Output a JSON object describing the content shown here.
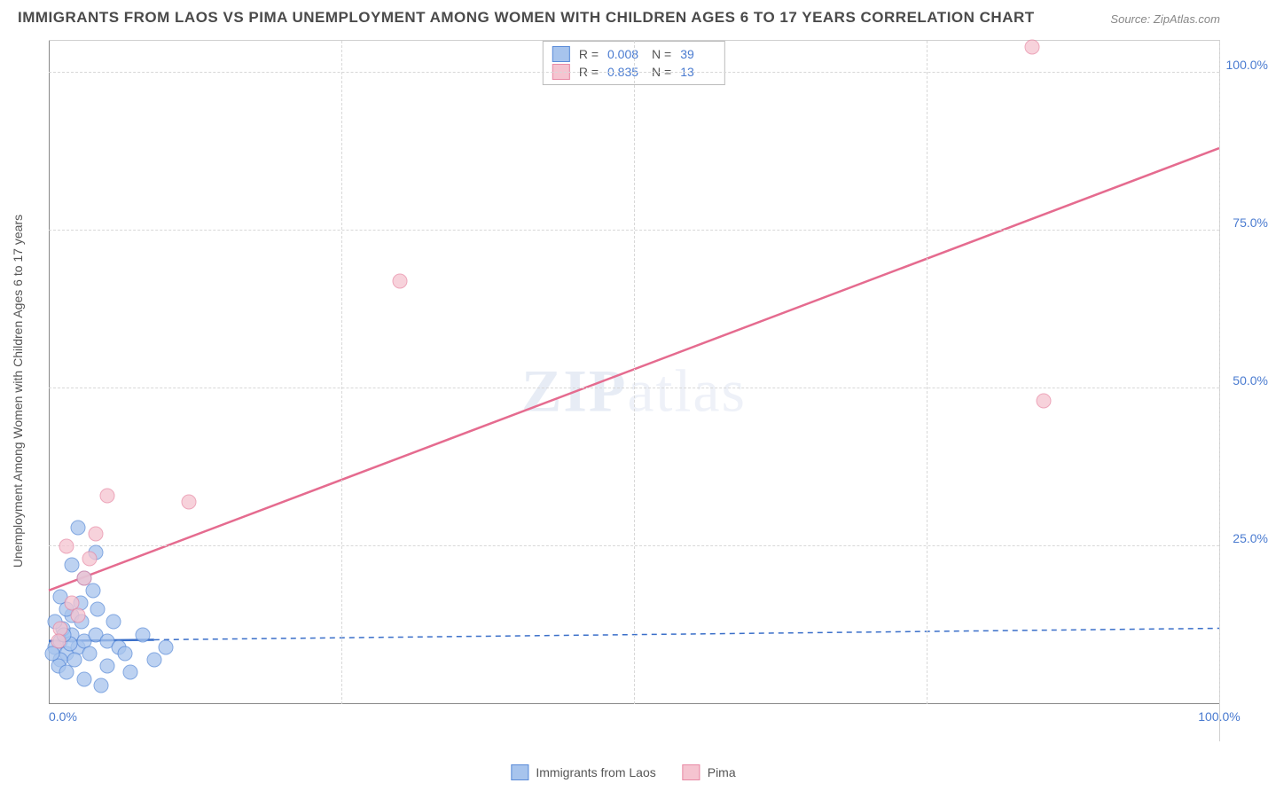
{
  "title": "IMMIGRANTS FROM LAOS VS PIMA UNEMPLOYMENT AMONG WOMEN WITH CHILDREN AGES 6 TO 17 YEARS CORRELATION CHART",
  "source_label": "Source:",
  "source_value": "ZipAtlas.com",
  "ylabel": "Unemployment Among Women with Children Ages 6 to 17 years",
  "watermark_bold": "ZIP",
  "watermark_thin": "atlas",
  "chart": {
    "type": "scatter",
    "xlim": [
      0,
      100
    ],
    "ylim": [
      0,
      105
    ],
    "xtick_labels": [
      "0.0%",
      "100.0%"
    ],
    "xtick_positions": [
      0,
      100
    ],
    "ytick_labels": [
      "25.0%",
      "50.0%",
      "75.0%",
      "100.0%"
    ],
    "ytick_positions": [
      25,
      50,
      75,
      100
    ],
    "grid_h_positions": [
      25,
      50,
      75,
      100
    ],
    "grid_v_positions": [
      25,
      50,
      75,
      100
    ],
    "background_color": "#ffffff",
    "grid_color": "#d8d8d8",
    "axis_color": "#888888",
    "tick_font_color": "#4a7bd0",
    "tick_fontsize": 14,
    "title_fontsize": 17,
    "marker_radius": 7.5,
    "marker_opacity": 0.75
  },
  "series": [
    {
      "name": "Immigrants from Laos",
      "fill_color": "#a7c4ed",
      "stroke_color": "#5a8bd8",
      "trend": {
        "y_at_x0": 10,
        "y_at_x100": 12,
        "solid_until_x": 9,
        "line_color": "#3a6fc9",
        "line_width": 2.5,
        "dash": "6,5"
      },
      "R": "0.008",
      "N": "39",
      "points": [
        [
          0.5,
          9
        ],
        [
          1,
          10
        ],
        [
          1.5,
          8
        ],
        [
          2,
          11
        ],
        [
          1,
          7
        ],
        [
          2.5,
          9
        ],
        [
          0.8,
          6
        ],
        [
          1.2,
          12
        ],
        [
          3,
          10
        ],
        [
          2,
          14
        ],
        [
          4,
          11
        ],
        [
          1.5,
          15
        ],
        [
          3.5,
          8
        ],
        [
          2.8,
          13
        ],
        [
          0.3,
          8
        ],
        [
          1.8,
          9.5
        ],
        [
          2.2,
          7
        ],
        [
          5,
          10
        ],
        [
          1,
          17
        ],
        [
          3,
          20
        ],
        [
          2,
          22
        ],
        [
          4,
          24
        ],
        [
          2.5,
          28
        ],
        [
          1.5,
          5
        ],
        [
          3,
          4
        ],
        [
          5,
          6
        ],
        [
          7,
          5
        ],
        [
          4.5,
          3
        ],
        [
          9,
          7
        ],
        [
          6,
          9
        ],
        [
          8,
          11
        ],
        [
          10,
          9
        ],
        [
          0.5,
          13
        ],
        [
          1.3,
          11
        ],
        [
          2.7,
          16
        ],
        [
          3.8,
          18
        ],
        [
          5.5,
          13
        ],
        [
          6.5,
          8
        ],
        [
          4.2,
          15
        ]
      ]
    },
    {
      "name": "Pima",
      "fill_color": "#f5c4d0",
      "stroke_color": "#e88aa5",
      "trend": {
        "y_at_x0": 18,
        "y_at_x100": 88,
        "solid_until_x": 100,
        "line_color": "#e56b8f",
        "line_width": 2.5,
        "dash": "none"
      },
      "R": "0.835",
      "N": "13",
      "points": [
        [
          1,
          12
        ],
        [
          2,
          16
        ],
        [
          3,
          20
        ],
        [
          1.5,
          25
        ],
        [
          4,
          27
        ],
        [
          5,
          33
        ],
        [
          12,
          32
        ],
        [
          30,
          67
        ],
        [
          84,
          104
        ],
        [
          85,
          48
        ],
        [
          0.8,
          10
        ],
        [
          2.5,
          14
        ],
        [
          3.5,
          23
        ]
      ]
    }
  ],
  "stats_legend": {
    "r_label": "R =",
    "n_label": "N ="
  },
  "bottom_legend_labels": [
    "Immigrants from Laos",
    "Pima"
  ]
}
